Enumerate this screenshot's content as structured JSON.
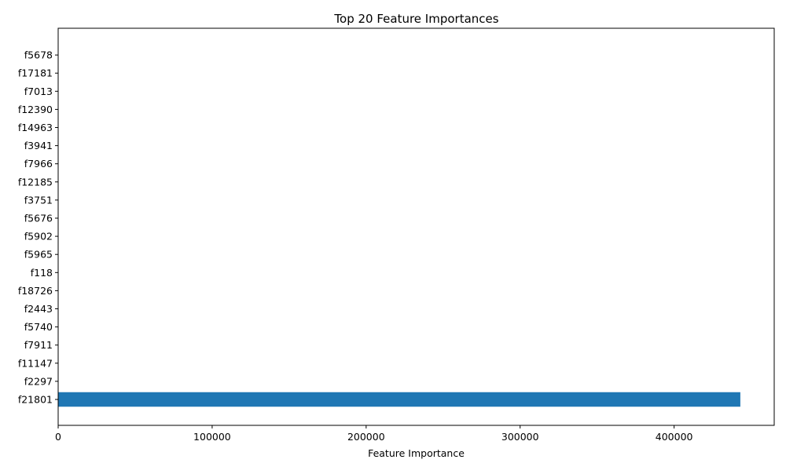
{
  "chart_data": {
    "type": "bar",
    "orientation": "horizontal",
    "title": "Top 20 Feature Importances",
    "xlabel": "Feature Importance",
    "ylabel": "",
    "categories": [
      "f21801",
      "f2297",
      "f11147",
      "f7911",
      "f5740",
      "f2443",
      "f18726",
      "f118",
      "f5965",
      "f5902",
      "f5676",
      "f3751",
      "f12185",
      "f7966",
      "f3941",
      "f14963",
      "f12390",
      "f7013",
      "f17181",
      "f5678"
    ],
    "values": [
      443000,
      0,
      0,
      0,
      0,
      0,
      0,
      0,
      0,
      0,
      0,
      0,
      0,
      0,
      0,
      0,
      0,
      0,
      0,
      0
    ],
    "xticks": [
      0,
      100000,
      200000,
      300000,
      400000
    ],
    "xtick_labels": [
      "0",
      "100000",
      "200000",
      "300000",
      "400000"
    ],
    "xlim": [
      0,
      465000
    ],
    "bar_color": "#1f77b4",
    "grid": false,
    "legend": "none"
  }
}
